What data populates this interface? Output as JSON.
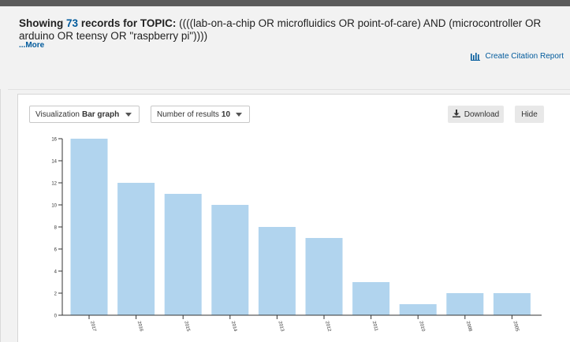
{
  "header": {
    "showing_label": "Showing",
    "record_count": "73",
    "records_for_label": "records for TOPIC:",
    "query": "((((lab-on-a-chip OR microfluidics OR point-of-care) AND (microcontroller OR arduino OR teensy OR \"raspberry pi\"))))",
    "more_link": "...More",
    "citation_report": "Create Citation Report"
  },
  "toolbar": {
    "visualization_label": "Visualization",
    "visualization_value": "Bar graph",
    "results_label": "Number of results",
    "results_value": "10",
    "download_label": "Download",
    "hide_label": "Hide"
  },
  "colors": {
    "bar": "#b1d4ee",
    "link": "#005a9c",
    "axis": "#333333"
  },
  "chart_data": {
    "type": "bar",
    "categories": [
      "2017",
      "2016",
      "2015",
      "2014",
      "2013",
      "2012",
      "2011",
      "2010",
      "2008",
      "2005"
    ],
    "values": [
      16,
      12,
      11,
      10,
      8,
      7,
      3,
      1,
      2,
      2
    ],
    "y_ticks": [
      "0",
      "2",
      "4",
      "6",
      "8",
      "10",
      "12",
      "14",
      "16"
    ],
    "ylim": [
      0,
      16
    ],
    "title": "",
    "xlabel": "",
    "ylabel": "",
    "grid": false
  }
}
